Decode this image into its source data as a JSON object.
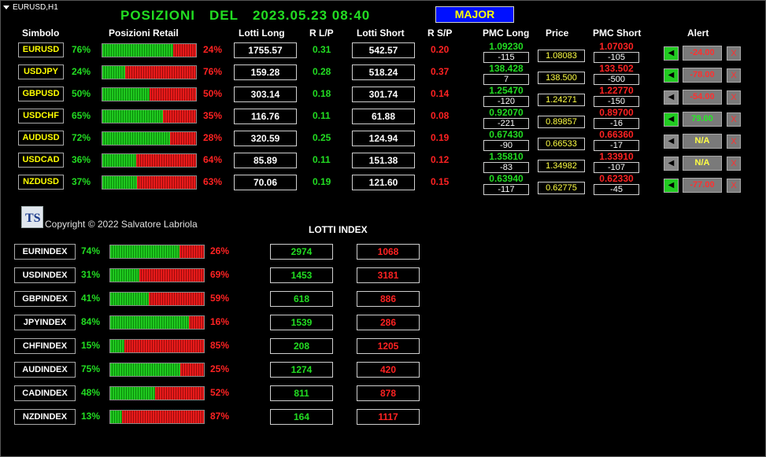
{
  "window": {
    "title": "EURUSD,H1"
  },
  "header": {
    "title_word1": "POSIZIONI",
    "title_word2": "DEL",
    "datetime": "2023.05.23 08:40",
    "group_button": "MAJOR"
  },
  "columns": {
    "symbol": "Simbolo",
    "retail": "Posizioni Retail",
    "lots_long": "Lotti Long",
    "ratio_lp": "R L/P",
    "lots_short": "Lotti Short",
    "ratio_sp": "R S/P",
    "pmc_long": "PMC Long",
    "price": "Price",
    "pmc_short": "PMC Short",
    "alert": "Alert"
  },
  "colors": {
    "green": "#22dd22",
    "red": "#ff2222",
    "yellow": "#ffff00",
    "blue": "#0010ff",
    "alert_grey": "#7a7a7a"
  },
  "pairs": [
    {
      "symbol": "EURUSD",
      "long_pct": "76%",
      "short_pct": "24%",
      "long_fraction": 0.76,
      "lots_long": "1755.57",
      "ratio_lp": "0.31",
      "lots_short": "542.57",
      "ratio_sp": "0.20",
      "pmc_long": "1.09230",
      "pmc_long_diff": "-115",
      "price": "1.08083",
      "pmc_short": "1.07030",
      "pmc_short_diff": "-105",
      "bell_icon": "bell-icon",
      "bell_color": "#22cc22",
      "alert_value": "-24.00",
      "alert_color": "#ff3030",
      "close_label": "X"
    },
    {
      "symbol": "USDJPY",
      "long_pct": "24%",
      "short_pct": "76%",
      "long_fraction": 0.24,
      "lots_long": "159.28",
      "ratio_lp": "0.28",
      "lots_short": "518.24",
      "ratio_sp": "0.37",
      "pmc_long": "138.428",
      "pmc_long_diff": "7",
      "price": "138.500",
      "pmc_short": "133.502",
      "pmc_short_diff": "-500",
      "bell_icon": "bell-icon",
      "bell_color": "#22cc22",
      "alert_value": "-78.00",
      "alert_color": "#ff3030",
      "close_label": "X"
    },
    {
      "symbol": "GBPUSD",
      "long_pct": "50%",
      "short_pct": "50%",
      "long_fraction": 0.5,
      "lots_long": "303.14",
      "ratio_lp": "0.18",
      "lots_short": "301.74",
      "ratio_sp": "0.14",
      "pmc_long": "1.25470",
      "pmc_long_diff": "-120",
      "price": "1.24271",
      "pmc_short": "1.22770",
      "pmc_short_diff": "-150",
      "bell_icon": "bell-icon",
      "bell_color": "#8a8a8a",
      "alert_value": "-54.00",
      "alert_color": "#ff3030",
      "close_label": "X"
    },
    {
      "symbol": "USDCHF",
      "long_pct": "65%",
      "short_pct": "35%",
      "long_fraction": 0.65,
      "lots_long": "116.76",
      "ratio_lp": "0.11",
      "lots_short": "61.88",
      "ratio_sp": "0.08",
      "pmc_long": "0.92070",
      "pmc_long_diff": "-221",
      "price": "0.89857",
      "pmc_short": "0.89700",
      "pmc_short_diff": "-16",
      "bell_icon": "bell-icon",
      "bell_color": "#22cc22",
      "alert_value": "79.00",
      "alert_color": "#22ee22",
      "close_label": "X"
    },
    {
      "symbol": "AUDUSD",
      "long_pct": "72%",
      "short_pct": "28%",
      "long_fraction": 0.72,
      "lots_long": "320.59",
      "ratio_lp": "0.25",
      "lots_short": "124.94",
      "ratio_sp": "0.19",
      "pmc_long": "0.67430",
      "pmc_long_diff": "-90",
      "price": "0.66533",
      "pmc_short": "0.66360",
      "pmc_short_diff": "-17",
      "bell_icon": "bell-icon",
      "bell_color": "#8a8a8a",
      "alert_value": "N/A",
      "alert_color": "#ffff44",
      "close_label": "X"
    },
    {
      "symbol": "USDCAD",
      "long_pct": "36%",
      "short_pct": "64%",
      "long_fraction": 0.36,
      "lots_long": "85.89",
      "ratio_lp": "0.11",
      "lots_short": "151.38",
      "ratio_sp": "0.12",
      "pmc_long": "1.35810",
      "pmc_long_diff": "-83",
      "price": "1.34982",
      "pmc_short": "1.33910",
      "pmc_short_diff": "-107",
      "bell_icon": "bell-icon",
      "bell_color": "#8a8a8a",
      "alert_value": "N/A",
      "alert_color": "#ffff44",
      "close_label": "X"
    },
    {
      "symbol": "NZDUSD",
      "long_pct": "37%",
      "short_pct": "63%",
      "long_fraction": 0.37,
      "lots_long": "70.06",
      "ratio_lp": "0.19",
      "lots_short": "121.60",
      "ratio_sp": "0.15",
      "pmc_long": "0.63940",
      "pmc_long_diff": "-117",
      "price": "0.62775",
      "pmc_short": "0.62330",
      "pmc_short_diff": "-45",
      "bell_icon": "bell-icon",
      "bell_color": "#22cc22",
      "alert_value": "-77.00",
      "alert_color": "#ff3030",
      "close_label": "X"
    }
  ],
  "footer": {
    "logo_icon": "ts-logo-icon",
    "copyright": "Copyright © 2022 Salvatore Labriola"
  },
  "index": {
    "title": "LOTTI INDEX",
    "rows": [
      {
        "symbol": "EURINDEX",
        "long_pct": "74%",
        "short_pct": "26%",
        "long_fraction": 0.74,
        "lots_long": "2974",
        "lots_short": "1068"
      },
      {
        "symbol": "USDINDEX",
        "long_pct": "31%",
        "short_pct": "69%",
        "long_fraction": 0.31,
        "lots_long": "1453",
        "lots_short": "3181"
      },
      {
        "symbol": "GBPINDEX",
        "long_pct": "41%",
        "short_pct": "59%",
        "long_fraction": 0.41,
        "lots_long": "618",
        "lots_short": "886"
      },
      {
        "symbol": "JPYINDEX",
        "long_pct": "84%",
        "short_pct": "16%",
        "long_fraction": 0.84,
        "lots_long": "1539",
        "lots_short": "286"
      },
      {
        "symbol": "CHFINDEX",
        "long_pct": "15%",
        "short_pct": "85%",
        "long_fraction": 0.15,
        "lots_long": "208",
        "lots_short": "1205"
      },
      {
        "symbol": "AUDINDEX",
        "long_pct": "75%",
        "short_pct": "25%",
        "long_fraction": 0.75,
        "lots_long": "1274",
        "lots_short": "420"
      },
      {
        "symbol": "CADINDEX",
        "long_pct": "48%",
        "short_pct": "52%",
        "long_fraction": 0.48,
        "lots_long": "811",
        "lots_short": "878"
      },
      {
        "symbol": "NZDINDEX",
        "long_pct": "13%",
        "short_pct": "87%",
        "long_fraction": 0.13,
        "lots_long": "164",
        "lots_short": "1117"
      }
    ]
  }
}
